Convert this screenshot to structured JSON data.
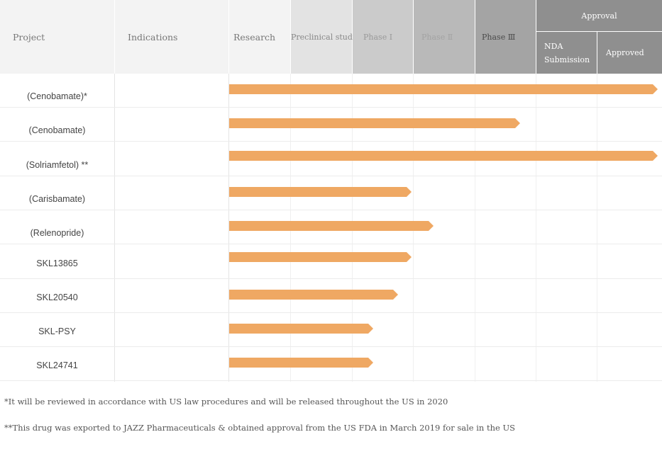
{
  "header": {
    "project": "Project",
    "indications": "Indications",
    "research": "Research",
    "preclinical": "Preclinical study",
    "phase1": "Phase Ⅰ",
    "phase2": "Phase Ⅱ",
    "phase3": "Phase Ⅲ",
    "approval": "Approval",
    "nda_line1": "NDA",
    "nda_line2": "Submission",
    "approved": "Approved"
  },
  "stages": [
    "Research",
    "Preclinical study",
    "Phase Ⅰ",
    "Phase Ⅱ",
    "Phase Ⅲ",
    "NDA Submission",
    "Approved"
  ],
  "colors": {
    "bar": "#efa863",
    "header_light": "#f3f3f3",
    "approval_bg": "#8f8f8f"
  },
  "projects": [
    {
      "name": "(Cenobamate)*",
      "indication": "",
      "progress_stages": 7.0
    },
    {
      "name": "(Cenobamate)",
      "indication": "",
      "progress_stages": 4.75
    },
    {
      "name": "(Solriamfetol) **",
      "indication": "",
      "progress_stages": 7.0
    },
    {
      "name": "(Carisbamate)",
      "indication": "",
      "progress_stages": 2.98
    },
    {
      "name": "(Relenopride)",
      "indication": "",
      "progress_stages": 3.34
    },
    {
      "name": "SKL13865",
      "indication": "",
      "progress_stages": 2.98
    },
    {
      "name": "SKL20540",
      "indication": "",
      "progress_stages": 2.76
    },
    {
      "name": "SKL-PSY",
      "indication": "",
      "progress_stages": 2.35
    },
    {
      "name": "SKL24741",
      "indication": "",
      "progress_stages": 2.35
    }
  ],
  "footnotes": [
    "*It will be reviewed in accordance with US law procedures and will be released throughout the US in 2020",
    "**This drug was exported to JAZZ Pharmaceuticals & obtained approval from the US FDA in March 2019 for sale in the US"
  ]
}
